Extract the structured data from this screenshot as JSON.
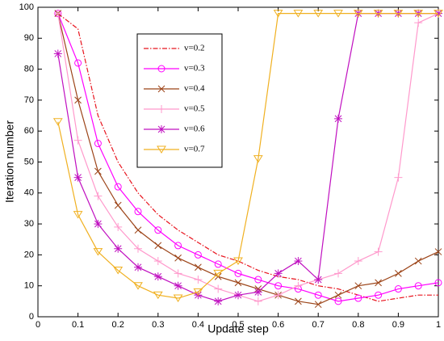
{
  "chart_data": {
    "type": "line",
    "xlabel": "Update step",
    "ylabel": "Iteration number",
    "x": [
      0.05,
      0.1,
      0.15,
      0.2,
      0.25,
      0.3,
      0.35,
      0.4,
      0.45,
      0.5,
      0.55,
      0.6,
      0.65,
      0.7,
      0.75,
      0.8,
      0.85,
      0.9,
      0.95,
      1
    ],
    "xlim": [
      0,
      1
    ],
    "xticks": [
      0,
      0.1,
      0.2,
      0.3,
      0.4,
      0.5,
      0.6,
      0.7,
      0.8,
      0.9,
      1
    ],
    "ylim": [
      0,
      100
    ],
    "yticks": [
      0,
      10,
      20,
      30,
      40,
      50,
      60,
      70,
      80,
      90,
      100
    ],
    "legend": "upper-left",
    "series": [
      {
        "name": "v=0.2",
        "color": "#e8141e",
        "dash": "dashdot",
        "marker": "none",
        "values": [
          98,
          93,
          65,
          50,
          40,
          33,
          28,
          24,
          20,
          18,
          15,
          13,
          12,
          10,
          9,
          7,
          5,
          6,
          7,
          7
        ]
      },
      {
        "name": "v=0.3",
        "color": "#ff00ff",
        "marker": "circle",
        "values": [
          98,
          82,
          56,
          42,
          34,
          28,
          23,
          20,
          17,
          14,
          12,
          10,
          9,
          7,
          5,
          6,
          7,
          9,
          10,
          11
        ]
      },
      {
        "name": "v=0.4",
        "color": "#9c4418",
        "marker": "x",
        "values": [
          98,
          70,
          47,
          36,
          28,
          23,
          19,
          16,
          13,
          11,
          9,
          7,
          5,
          4,
          7,
          10,
          11,
          14,
          18,
          21
        ]
      },
      {
        "name": "v=0.5",
        "color": "#ff99cc",
        "marker": "plus",
        "values": [
          98,
          57,
          39,
          29,
          22,
          18,
          14,
          12,
          9,
          7,
          5,
          7,
          10,
          12,
          14,
          18,
          21,
          45,
          95,
          98
        ]
      },
      {
        "name": "v=0.6",
        "color": "#c010c0",
        "marker": "star",
        "values": [
          85,
          45,
          30,
          22,
          16,
          13,
          10,
          7,
          5,
          7,
          8,
          14,
          18,
          12,
          64,
          98,
          98,
          98,
          98,
          98
        ]
      },
      {
        "name": "v=0.7",
        "color": "#f0b020",
        "marker": "triangle-down",
        "values": [
          63,
          33,
          21,
          15,
          10,
          7,
          6,
          8,
          14,
          18,
          51,
          98,
          98,
          98,
          98,
          98,
          98,
          98,
          98,
          98
        ]
      }
    ]
  }
}
